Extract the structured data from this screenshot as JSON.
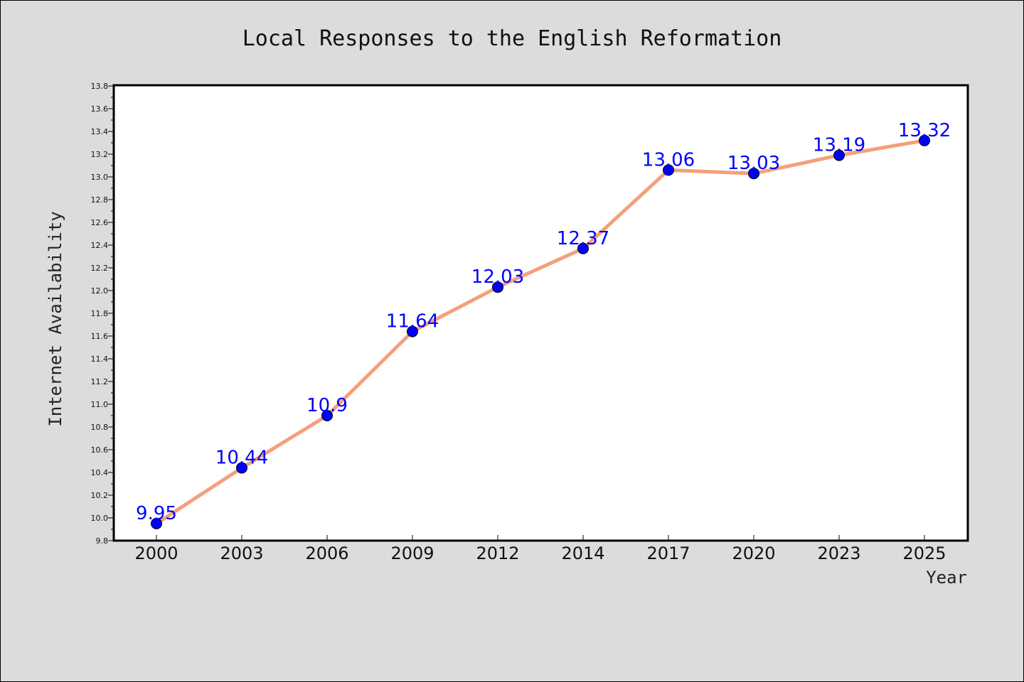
{
  "chart_data": {
    "type": "line",
    "title": "Local Responses to the English Reformation",
    "xlabel": "Year",
    "ylabel": "Internet Availability",
    "categories": [
      "2000",
      "2003",
      "2006",
      "2009",
      "2012",
      "2014",
      "2017",
      "2020",
      "2023",
      "2025"
    ],
    "series": [
      {
        "values": [
          9.95,
          10.44,
          10.9,
          11.64,
          12.03,
          12.37,
          13.06,
          13.03,
          13.19,
          13.32
        ],
        "data_labels": [
          "9.95",
          "10.44",
          "10.9",
          "11.64",
          "12.03",
          "12.37",
          "13.06",
          "13.03",
          "13.19",
          "13.32"
        ],
        "line_color": "#f4a07c",
        "marker_color": "#0000ff"
      }
    ],
    "ylim": [
      9.8,
      13.8
    ],
    "yticks": [
      "9.8",
      "10.0",
      "10.2",
      "10.4",
      "10.6",
      "10.8",
      "11.0",
      "11.2",
      "11.4",
      "11.6",
      "11.8",
      "12.0",
      "12.2",
      "12.4",
      "12.6",
      "12.8",
      "13.0",
      "13.2",
      "13.4",
      "13.6",
      "13.8"
    ],
    "grid": false,
    "background_color": "#dcdcdc",
    "plot_background_color": "#ffffff"
  }
}
